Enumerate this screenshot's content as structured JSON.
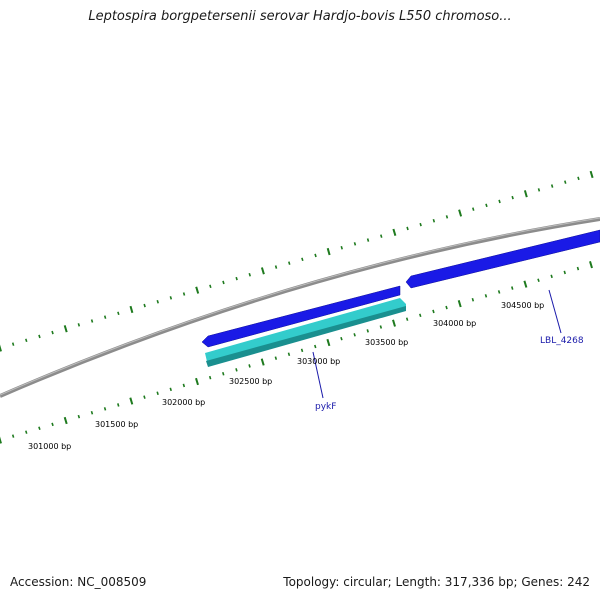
{
  "title": "Leptospira borgpetersenii serovar Hardjo-bovis L550 chromoso...",
  "footer": {
    "accession": "Accession: NC_008509",
    "summary": "Topology: circular; Length: 317,336 bp; Genes: 242"
  },
  "colors": {
    "backbone": "#8c8c8c",
    "tick": "#1e7a1e",
    "forward_gene": "#1a1ae6",
    "reverse_gene": "#33cccc",
    "gene_label": "#1a1aaa"
  },
  "ticks": {
    "unit": "bp",
    "labels": [
      "301000 bp",
      "301500 bp",
      "302000 bp",
      "302500 bp",
      "303000 bp",
      "303500 bp",
      "304000 bp",
      "304500 bp"
    ]
  },
  "genes": [
    {
      "name": "pykF",
      "strand": "reverse"
    },
    {
      "name": "LBL_4268",
      "strand": "forward"
    }
  ]
}
